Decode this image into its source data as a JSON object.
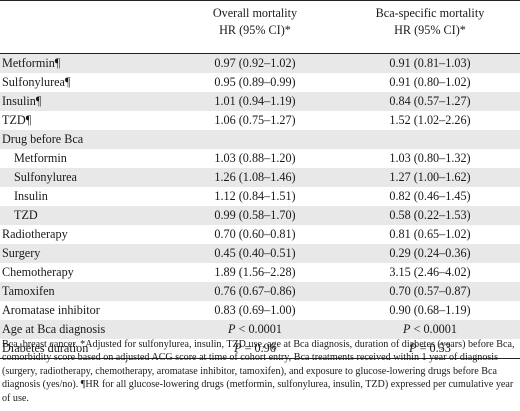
{
  "header": {
    "col1": "",
    "col2_line1": "Overall mortality",
    "col2_line2": "HR (95% CI)*",
    "col3_line1": "Bca-specific mortality",
    "col3_line2": "HR (95% CI)*"
  },
  "rows": [
    {
      "label": "Metformin¶",
      "overall": "0.97 (0.92–1.02)",
      "specific": "0.91 (0.81–1.03)"
    },
    {
      "label": "Sulfonylurea¶",
      "overall": "0.95 (0.89–0.99)",
      "specific": "0.91 (0.80–1.02)"
    },
    {
      "label": "Insulin¶",
      "overall": "1.01 (0.94–1.19)",
      "specific": "0.84 (0.57–1.27)"
    },
    {
      "label": "TZD¶",
      "overall": "1.06 (0.75–1.27)",
      "specific": "1.52 (1.02–2.26)"
    },
    {
      "label": "Drug before Bca",
      "overall": "",
      "specific": ""
    },
    {
      "label": "Metformin",
      "overall": "1.03 (0.88–1.20)",
      "specific": "1.03 (0.80–1.32)"
    },
    {
      "label": "Sulfonylurea",
      "overall": "1.26 (1.08–1.46)",
      "specific": "1.27 (1.00–1.62)"
    },
    {
      "label": "Insulin",
      "overall": "1.12 (0.84–1.51)",
      "specific": "0.82 (0.46–1.45)"
    },
    {
      "label": "TZD",
      "overall": "0.99 (0.58–1.70)",
      "specific": "0.58 (0.22–1.53)"
    },
    {
      "label": "Radiotherapy",
      "overall": "0.70 (0.60–0.81)",
      "specific": "0.81 (0.65–1.02)"
    },
    {
      "label": "Surgery",
      "overall": "0.45 (0.40–0.51)",
      "specific": "0.29 (0.24–0.36)"
    },
    {
      "label": "Chemotherapy",
      "overall": "1.89 (1.56–2.28)",
      "specific": "3.15 (2.46–4.02)"
    },
    {
      "label": "Tamoxifen",
      "overall": "0.76 (0.67–0.86)",
      "specific": "0.70 (0.57–0.87)"
    },
    {
      "label": "Aromatase inhibitor",
      "overall": "0.83 (0.69–1.00)",
      "specific": "0.90 (0.68–1.19)"
    },
    {
      "label": "Age at Bca diagnosis",
      "overall_p": "P",
      "overall_rest": " < 0.0001",
      "specific_p": "P",
      "specific_rest": " < 0.0001"
    },
    {
      "label": "Diabetes duration",
      "overall_p": "P",
      "overall_rest": " = 0.96",
      "specific_p": "P",
      "specific_rest": " = 0.53"
    }
  ],
  "footnote": "Bca, breast cancer. *Adjusted for sulfonylurea, insulin, TZD use, age at Bca diagnosis, duration of diabetes (years) before Bca, comorbidity score based on adjusted ACG score at time of cohort entry, Bca treatments received within 1 year of diagnosis (surgery, radiotherapy, chemotherapy, aromatase inhibitor, tamoxifen), and exposure to glucose-lowering drugs before Bca diagnosis (yes/no). ¶HR for all glucose-lowering drugs (metformin, sulfonylurea, insulin, TZD) expressed per cumulative year of use."
}
